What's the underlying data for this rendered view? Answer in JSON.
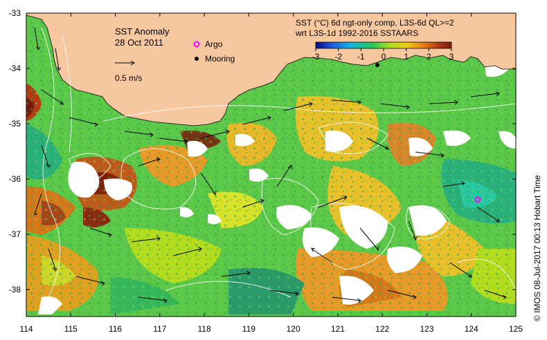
{
  "title": "SST Anomaly",
  "date": "28 Oct 2011",
  "vector_scale_label": "0.5 m/s",
  "legend": {
    "argo": "Argo",
    "mooring": "Mooring"
  },
  "product": {
    "line1": "SST (°C) 6d ngt-only comp, L3S-6d QL>=2",
    "line2": "wrt L3S-1d 1992-2016 SSTAARS"
  },
  "colorbar": {
    "ticks": [
      "-3",
      "-2",
      "-1",
      "0",
      "1",
      "2",
      "3"
    ],
    "colors": [
      "#0a0a8c",
      "#1e5adc",
      "#14b4e6",
      "#28c850",
      "#b4dc1e",
      "#f0c814",
      "#e67814",
      "#b43c14",
      "#7a1a0a"
    ]
  },
  "credit": "© IMOS 08-Jul-2017 00:13 Hobart Time",
  "axes": {
    "lon_ticks": [
      "114",
      "115",
      "116",
      "117",
      "118",
      "119",
      "120",
      "121",
      "122",
      "123",
      "124",
      "125"
    ],
    "lat_ticks": [
      "-33",
      "-34",
      "-35",
      "-36",
      "-37",
      "-38"
    ]
  },
  "colors": {
    "land": "#f7c8a0",
    "ocean_base": "#5cc84a",
    "missing": "#ffffff"
  }
}
